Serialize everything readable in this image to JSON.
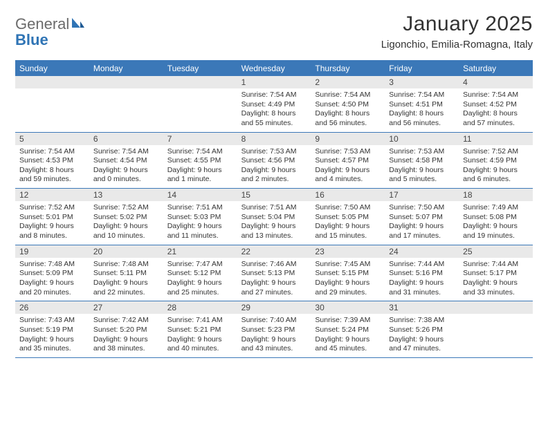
{
  "brand": {
    "general": "General",
    "blue": "Blue"
  },
  "title": "January 2025",
  "location": "Ligonchio, Emilia-Romagna, Italy",
  "colors": {
    "header_bar": "#3b78b8",
    "daynum_bg": "#e9e9e9",
    "border": "#3b78b8",
    "text": "#333333",
    "logo_gray": "#6b6b6b",
    "logo_blue": "#2f74b5",
    "background": "#ffffff"
  },
  "fonts": {
    "title_size": 30,
    "location_size": 15,
    "dow_size": 12,
    "daynum_size": 12,
    "detail_size": 10.5
  },
  "dow": [
    "Sunday",
    "Monday",
    "Tuesday",
    "Wednesday",
    "Thursday",
    "Friday",
    "Saturday"
  ],
  "weeks": [
    [
      null,
      null,
      null,
      {
        "n": "1",
        "sr": "7:54 AM",
        "ss": "4:49 PM",
        "dl": "8 hours and 55 minutes."
      },
      {
        "n": "2",
        "sr": "7:54 AM",
        "ss": "4:50 PM",
        "dl": "8 hours and 56 minutes."
      },
      {
        "n": "3",
        "sr": "7:54 AM",
        "ss": "4:51 PM",
        "dl": "8 hours and 56 minutes."
      },
      {
        "n": "4",
        "sr": "7:54 AM",
        "ss": "4:52 PM",
        "dl": "8 hours and 57 minutes."
      }
    ],
    [
      {
        "n": "5",
        "sr": "7:54 AM",
        "ss": "4:53 PM",
        "dl": "8 hours and 59 minutes."
      },
      {
        "n": "6",
        "sr": "7:54 AM",
        "ss": "4:54 PM",
        "dl": "9 hours and 0 minutes."
      },
      {
        "n": "7",
        "sr": "7:54 AM",
        "ss": "4:55 PM",
        "dl": "9 hours and 1 minute."
      },
      {
        "n": "8",
        "sr": "7:53 AM",
        "ss": "4:56 PM",
        "dl": "9 hours and 2 minutes."
      },
      {
        "n": "9",
        "sr": "7:53 AM",
        "ss": "4:57 PM",
        "dl": "9 hours and 4 minutes."
      },
      {
        "n": "10",
        "sr": "7:53 AM",
        "ss": "4:58 PM",
        "dl": "9 hours and 5 minutes."
      },
      {
        "n": "11",
        "sr": "7:52 AM",
        "ss": "4:59 PM",
        "dl": "9 hours and 6 minutes."
      }
    ],
    [
      {
        "n": "12",
        "sr": "7:52 AM",
        "ss": "5:01 PM",
        "dl": "9 hours and 8 minutes."
      },
      {
        "n": "13",
        "sr": "7:52 AM",
        "ss": "5:02 PM",
        "dl": "9 hours and 10 minutes."
      },
      {
        "n": "14",
        "sr": "7:51 AM",
        "ss": "5:03 PM",
        "dl": "9 hours and 11 minutes."
      },
      {
        "n": "15",
        "sr": "7:51 AM",
        "ss": "5:04 PM",
        "dl": "9 hours and 13 minutes."
      },
      {
        "n": "16",
        "sr": "7:50 AM",
        "ss": "5:05 PM",
        "dl": "9 hours and 15 minutes."
      },
      {
        "n": "17",
        "sr": "7:50 AM",
        "ss": "5:07 PM",
        "dl": "9 hours and 17 minutes."
      },
      {
        "n": "18",
        "sr": "7:49 AM",
        "ss": "5:08 PM",
        "dl": "9 hours and 19 minutes."
      }
    ],
    [
      {
        "n": "19",
        "sr": "7:48 AM",
        "ss": "5:09 PM",
        "dl": "9 hours and 20 minutes."
      },
      {
        "n": "20",
        "sr": "7:48 AM",
        "ss": "5:11 PM",
        "dl": "9 hours and 22 minutes."
      },
      {
        "n": "21",
        "sr": "7:47 AM",
        "ss": "5:12 PM",
        "dl": "9 hours and 25 minutes."
      },
      {
        "n": "22",
        "sr": "7:46 AM",
        "ss": "5:13 PM",
        "dl": "9 hours and 27 minutes."
      },
      {
        "n": "23",
        "sr": "7:45 AM",
        "ss": "5:15 PM",
        "dl": "9 hours and 29 minutes."
      },
      {
        "n": "24",
        "sr": "7:44 AM",
        "ss": "5:16 PM",
        "dl": "9 hours and 31 minutes."
      },
      {
        "n": "25",
        "sr": "7:44 AM",
        "ss": "5:17 PM",
        "dl": "9 hours and 33 minutes."
      }
    ],
    [
      {
        "n": "26",
        "sr": "7:43 AM",
        "ss": "5:19 PM",
        "dl": "9 hours and 35 minutes."
      },
      {
        "n": "27",
        "sr": "7:42 AM",
        "ss": "5:20 PM",
        "dl": "9 hours and 38 minutes."
      },
      {
        "n": "28",
        "sr": "7:41 AM",
        "ss": "5:21 PM",
        "dl": "9 hours and 40 minutes."
      },
      {
        "n": "29",
        "sr": "7:40 AM",
        "ss": "5:23 PM",
        "dl": "9 hours and 43 minutes."
      },
      {
        "n": "30",
        "sr": "7:39 AM",
        "ss": "5:24 PM",
        "dl": "9 hours and 45 minutes."
      },
      {
        "n": "31",
        "sr": "7:38 AM",
        "ss": "5:26 PM",
        "dl": "9 hours and 47 minutes."
      },
      null
    ]
  ],
  "labels": {
    "sunrise": "Sunrise:",
    "sunset": "Sunset:",
    "daylight": "Daylight:"
  }
}
